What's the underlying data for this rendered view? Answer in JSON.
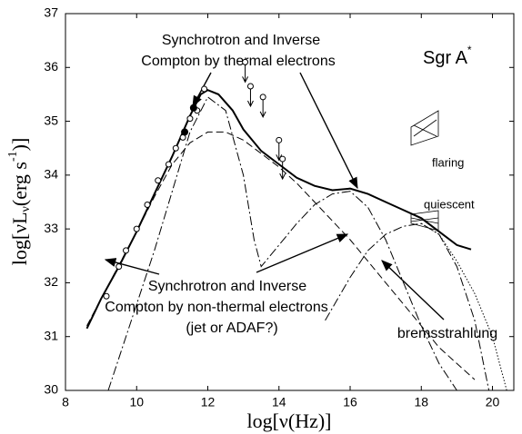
{
  "chart_data": {
    "type": "line",
    "title": {
      "main": "Sgr A",
      "sup": "*"
    },
    "x_label": "log[ν(Hz)]",
    "y_label": {
      "pre": "log[νL",
      "sub": "ν",
      "mid": "(erg s",
      "sup": "-1",
      "post": ")]"
    },
    "annotations": {
      "thermal": [
        "Synchrotron  and  Inverse",
        "Compton by thermal electrons"
      ],
      "nonthermal": [
        "Synchrotron  and  Inverse",
        "Compton by non-thermal electrons",
        "(jet or ADAF?)"
      ],
      "brems": "bremsstrahlung",
      "flaring": "flaring",
      "quiescent": "quiescent"
    },
    "xlim": [
      8,
      20.6
    ],
    "ylim": [
      30,
      37
    ],
    "xticks": [
      8,
      10,
      12,
      14,
      16,
      18,
      20
    ],
    "yticks": [
      30,
      31,
      32,
      33,
      34,
      35,
      36,
      37
    ],
    "series": [
      {
        "color": "#000",
        "style": "solid",
        "width": 2,
        "x": [
          8.6,
          9,
          9.5,
          10,
          10.5,
          11,
          11.5,
          11.8,
          12,
          12.3,
          12.7,
          13,
          13.5,
          14,
          14.5,
          15,
          15.5,
          16,
          16.5,
          17,
          17.5,
          18,
          18.5,
          19,
          19.4
        ],
        "values": [
          31.15,
          31.7,
          32.3,
          32.95,
          33.65,
          34.35,
          35.1,
          35.5,
          35.58,
          35.5,
          35.2,
          34.85,
          34.45,
          34.2,
          33.95,
          33.8,
          33.72,
          33.75,
          33.65,
          33.5,
          33.35,
          33.2,
          32.95,
          32.7,
          32.62
        ]
      },
      {
        "color": "#000",
        "style": "dashdot",
        "width": 1,
        "x": [
          9.2,
          10,
          10.5,
          11,
          11.5,
          12,
          12.5,
          13,
          13.3,
          13.5,
          14,
          14.5,
          15,
          15.5,
          16,
          16.5,
          17,
          17.5,
          18,
          18.5,
          19
        ],
        "values": [
          30,
          31.6,
          32.6,
          33.7,
          34.8,
          35.45,
          35.2,
          34,
          32.8,
          32.3,
          32.7,
          33.1,
          33.45,
          33.65,
          33.7,
          33.4,
          32.8,
          32,
          31.2,
          30.5,
          30
        ]
      },
      {
        "color": "#000",
        "style": "dashed",
        "width": 1,
        "x": [
          8.6,
          9,
          10,
          10.5,
          11,
          11.5,
          12,
          12.5,
          13,
          13.5,
          14,
          14.5,
          15,
          15.5,
          16,
          16.5,
          17,
          17.5,
          18,
          18.5,
          19,
          19.5
        ],
        "values": [
          31.2,
          31.7,
          32.95,
          33.6,
          34.2,
          34.6,
          34.8,
          34.8,
          34.65,
          34.4,
          34.15,
          33.85,
          33.5,
          33.15,
          32.8,
          32.4,
          32,
          31.6,
          31.2,
          30.8,
          30.5,
          30.2
        ]
      },
      {
        "color": "#000",
        "style": "dashdot",
        "width": 1,
        "x": [
          15.3,
          16,
          16.5,
          17,
          17.5,
          18,
          18.5,
          19,
          19.5,
          19.9
        ],
        "values": [
          31.3,
          32.1,
          32.6,
          32.9,
          33.05,
          33.1,
          32.9,
          32.3,
          31.3,
          30
        ]
      },
      {
        "color": "#000",
        "style": "dotted",
        "width": 1,
        "x": [
          18,
          18.5,
          19,
          19.5,
          20,
          20.4
        ],
        "values": [
          33.1,
          32.9,
          32.4,
          31.8,
          31,
          30
        ]
      }
    ],
    "points_open": {
      "x": [
        9.15,
        9.5,
        9.7,
        10,
        10.3,
        10.6,
        10.9,
        11.1,
        11.3,
        11.5,
        11.7,
        11.9
      ],
      "values": [
        31.75,
        32.3,
        32.6,
        33,
        33.45,
        33.9,
        34.2,
        34.5,
        34.7,
        35.05,
        35.2,
        35.6
      ]
    },
    "points_filled": {
      "x": [
        11.35,
        11.6
      ],
      "values": [
        34.8,
        35.25
      ]
    },
    "upper_limits": {
      "x": [
        13.05,
        13.2,
        13.55,
        14,
        14.1
      ],
      "values": [
        36.1,
        35.65,
        35.45,
        34.65,
        34.3
      ]
    }
  }
}
